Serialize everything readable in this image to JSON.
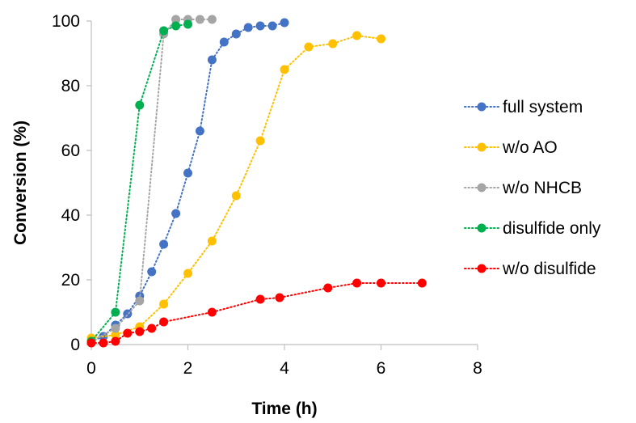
{
  "chart_data": {
    "type": "scatter",
    "xlabel": "Time (h)",
    "ylabel": "Conversion (%)",
    "xlim": [
      0,
      8
    ],
    "ylim": [
      0,
      100
    ],
    "xticks": [
      "0",
      "2",
      "4",
      "6",
      "8"
    ],
    "yticks": [
      "0",
      "20",
      "40",
      "60",
      "80",
      "100"
    ],
    "grid": false,
    "legend_position": "right",
    "line_style": "dotted",
    "series": [
      {
        "name": "full system",
        "color": "#4472C4",
        "points": [
          [
            0,
            1
          ],
          [
            0.25,
            2.5
          ],
          [
            0.5,
            6
          ],
          [
            0.75,
            9.5
          ],
          [
            1,
            15
          ],
          [
            1.25,
            22.5
          ],
          [
            1.5,
            31
          ],
          [
            1.75,
            40.5
          ],
          [
            2,
            53
          ],
          [
            2.25,
            66
          ],
          [
            2.5,
            88
          ],
          [
            2.75,
            93.5
          ],
          [
            3,
            96
          ],
          [
            3.25,
            98
          ],
          [
            3.5,
            98.5
          ],
          [
            3.75,
            98.5
          ],
          [
            4,
            99.5
          ]
        ]
      },
      {
        "name": "w/o AO",
        "color": "#FFC000",
        "points": [
          [
            0,
            2
          ],
          [
            0.5,
            3
          ],
          [
            1,
            5.5
          ],
          [
            1.5,
            12.5
          ],
          [
            2,
            22
          ],
          [
            2.5,
            32
          ],
          [
            3,
            46
          ],
          [
            3.5,
            63
          ],
          [
            4,
            85
          ],
          [
            4.5,
            92
          ],
          [
            5,
            93
          ],
          [
            5.5,
            95.5
          ],
          [
            6,
            94.5
          ]
        ]
      },
      {
        "name": "w/o NHCB",
        "color": "#A5A5A5",
        "points": [
          [
            0,
            1
          ],
          [
            0.5,
            5
          ],
          [
            1,
            13.5
          ],
          [
            1.5,
            96
          ],
          [
            1.75,
            100.5
          ],
          [
            2,
            100.5
          ],
          [
            2.25,
            100.5
          ],
          [
            2.5,
            100.5
          ]
        ]
      },
      {
        "name": "disulfide only",
        "color": "#00B050",
        "points": [
          [
            0,
            1
          ],
          [
            0.5,
            10
          ],
          [
            1,
            74
          ],
          [
            1.5,
            97
          ],
          [
            1.75,
            98.5
          ],
          [
            2,
            99
          ]
        ]
      },
      {
        "name": "w/o disulfide",
        "color": "#FF0000",
        "points": [
          [
            0,
            0.5
          ],
          [
            0.25,
            0.5
          ],
          [
            0.5,
            1
          ],
          [
            0.75,
            3.5
          ],
          [
            1,
            4
          ],
          [
            1.25,
            5
          ],
          [
            1.5,
            7
          ],
          [
            2.5,
            10
          ],
          [
            3.5,
            14
          ],
          [
            3.9,
            14.5
          ],
          [
            4.9,
            17.5
          ],
          [
            5.5,
            19
          ],
          [
            6,
            19
          ],
          [
            6.85,
            19
          ]
        ]
      }
    ]
  }
}
